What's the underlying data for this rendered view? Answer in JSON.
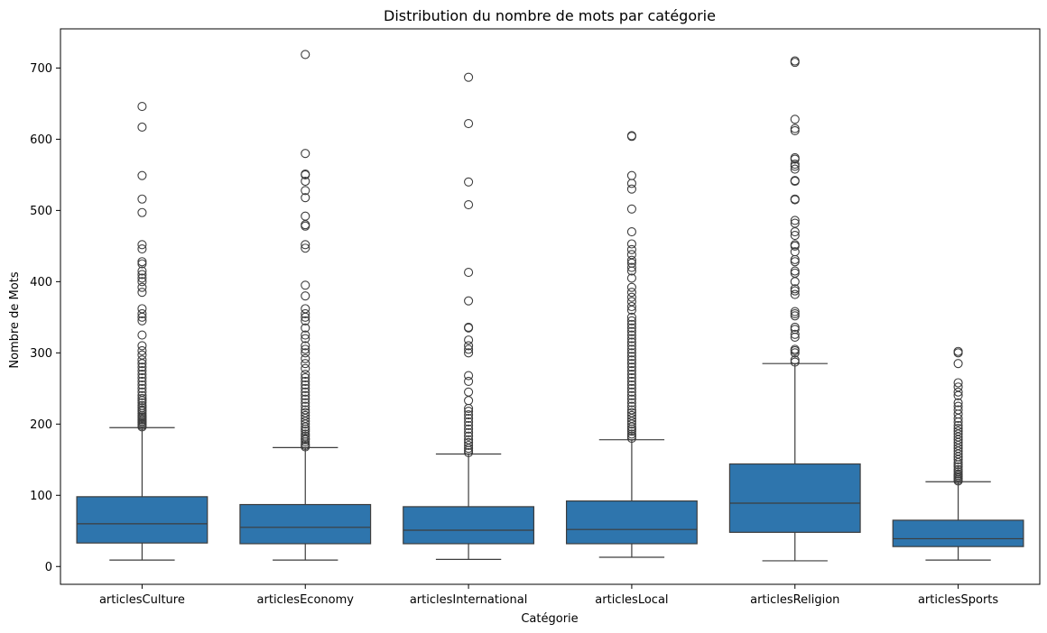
{
  "chart_data": {
    "type": "box",
    "title": "Distribution du nombre de mots par catégorie",
    "xlabel": "Catégorie",
    "ylabel": "Nombre de Mots",
    "ylim": [
      -25,
      755
    ],
    "yticks": [
      0,
      100,
      200,
      300,
      400,
      500,
      600,
      700
    ],
    "grid": false,
    "box_color": "#2e75ad",
    "line_color": "#3d3d3d",
    "categories": [
      "articlesCulture",
      "articlesEconomy",
      "articlesInternational",
      "articlesLocal",
      "articlesReligion",
      "articlesSports"
    ],
    "boxes": [
      {
        "category": "articlesCulture",
        "min": 9,
        "q1": 33,
        "median": 60,
        "q3": 98,
        "max": 195,
        "outliers": [
          196,
          198,
          200,
          202,
          204,
          206,
          208,
          210,
          212,
          215,
          218,
          220,
          223,
          226,
          230,
          233,
          236,
          240,
          245,
          250,
          255,
          260,
          265,
          270,
          275,
          280,
          285,
          290,
          297,
          303,
          310,
          325,
          345,
          350,
          355,
          362,
          385,
          392,
          400,
          405,
          410,
          415,
          425,
          428,
          446,
          452,
          497,
          516,
          549,
          617,
          646
        ]
      },
      {
        "category": "articlesEconomy",
        "min": 9,
        "q1": 32,
        "median": 55,
        "q3": 87,
        "max": 167,
        "outliers": [
          168,
          170,
          172,
          175,
          178,
          180,
          183,
          186,
          190,
          193,
          196,
          200,
          204,
          208,
          212,
          216,
          220,
          225,
          230,
          235,
          240,
          245,
          250,
          255,
          260,
          265,
          270,
          278,
          285,
          292,
          300,
          305,
          310,
          320,
          325,
          335,
          345,
          350,
          355,
          362,
          380,
          395,
          447,
          452,
          478,
          480,
          492,
          518,
          528,
          541,
          550,
          551,
          580,
          719
        ]
      },
      {
        "category": "articlesInternational",
        "min": 10,
        "q1": 32,
        "median": 51,
        "q3": 84,
        "max": 158,
        "outliers": [
          160,
          163,
          166,
          170,
          174,
          178,
          183,
          188,
          193,
          198,
          203,
          208,
          213,
          218,
          222,
          233,
          245,
          260,
          268,
          300,
          305,
          310,
          318,
          335,
          336,
          373,
          413,
          508,
          540,
          622,
          687
        ]
      },
      {
        "category": "articlesLocal",
        "min": 13,
        "q1": 32,
        "median": 52,
        "q3": 92,
        "max": 178,
        "outliers": [
          180,
          183,
          186,
          190,
          193,
          196,
          200,
          204,
          208,
          212,
          216,
          220,
          225,
          230,
          235,
          240,
          245,
          250,
          255,
          260,
          265,
          270,
          275,
          280,
          285,
          290,
          295,
          300,
          305,
          310,
          315,
          320,
          325,
          330,
          335,
          340,
          345,
          350,
          360,
          365,
          372,
          378,
          385,
          392,
          405,
          415,
          420,
          426,
          430,
          438,
          445,
          453,
          470,
          502,
          530,
          538,
          549,
          604,
          605
        ]
      },
      {
        "category": "articlesReligion",
        "min": 8,
        "q1": 48,
        "median": 89,
        "q3": 144,
        "max": 285,
        "outliers": [
          287,
          290,
          300,
          303,
          305,
          322,
          326,
          333,
          336,
          352,
          355,
          358,
          382,
          387,
          390,
          400,
          412,
          415,
          428,
          431,
          442,
          450,
          452,
          465,
          470,
          482,
          486,
          515,
          516,
          541,
          542,
          558,
          562,
          565,
          572,
          574,
          612,
          615,
          628,
          708,
          710
        ]
      },
      {
        "category": "articlesSports",
        "min": 9,
        "q1": 28,
        "median": 39,
        "q3": 65,
        "max": 119,
        "outliers": [
          120,
          122,
          124,
          126,
          128,
          130,
          133,
          136,
          140,
          143,
          146,
          150,
          154,
          158,
          162,
          166,
          170,
          174,
          178,
          182,
          186,
          190,
          194,
          198,
          203,
          208,
          214,
          220,
          225,
          230,
          240,
          245,
          252,
          258,
          285,
          300,
          302
        ]
      }
    ]
  }
}
